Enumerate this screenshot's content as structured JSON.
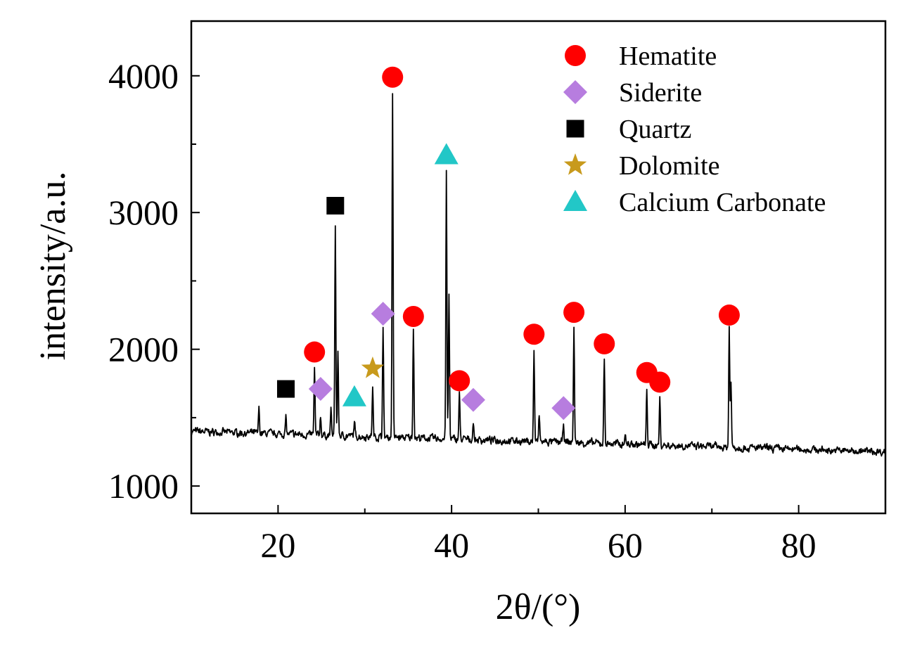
{
  "chart_data": {
    "type": "line",
    "title": "",
    "xlabel": "2θ/(°)",
    "ylabel": "intensity/a.u.",
    "xlim": [
      10,
      90
    ],
    "ylim": [
      800,
      4400
    ],
    "xticks": [
      20,
      40,
      60,
      80
    ],
    "yticks": [
      1000,
      2000,
      3000,
      4000
    ],
    "grid": false,
    "legend_position": "top-right",
    "colors": {
      "line": "#000000",
      "Hematite": "#ff0000",
      "Siderite": "#b77ddf",
      "Quartz": "#000000",
      "Dolomite": "#c89a1c",
      "Calcium Carbonate": "#22c7c7"
    },
    "baseline": {
      "x": [
        10,
        90
      ],
      "y": [
        1400,
        1250
      ]
    },
    "peaks": [
      {
        "x": 17.8,
        "y": 1570
      },
      {
        "x": 20.9,
        "y": 1500
      },
      {
        "x": 24.2,
        "y": 1860
      },
      {
        "x": 24.9,
        "y": 1520
      },
      {
        "x": 26.1,
        "y": 1560
      },
      {
        "x": 26.6,
        "y": 2920
      },
      {
        "x": 26.9,
        "y": 1980
      },
      {
        "x": 28.8,
        "y": 1470
      },
      {
        "x": 30.9,
        "y": 1720
      },
      {
        "x": 32.1,
        "y": 2160
      },
      {
        "x": 33.2,
        "y": 3870
      },
      {
        "x": 35.6,
        "y": 2150
      },
      {
        "x": 39.4,
        "y": 3290
      },
      {
        "x": 39.7,
        "y": 2390
      },
      {
        "x": 40.9,
        "y": 1680
      },
      {
        "x": 42.5,
        "y": 1470
      },
      {
        "x": 49.5,
        "y": 1990
      },
      {
        "x": 50.1,
        "y": 1520
      },
      {
        "x": 52.9,
        "y": 1460
      },
      {
        "x": 54.1,
        "y": 2170
      },
      {
        "x": 57.6,
        "y": 1930
      },
      {
        "x": 60.0,
        "y": 1390
      },
      {
        "x": 62.5,
        "y": 1710
      },
      {
        "x": 64.0,
        "y": 1640
      },
      {
        "x": 72.0,
        "y": 2160
      },
      {
        "x": 72.2,
        "y": 1760
      }
    ],
    "legend": [
      {
        "name": "Hematite",
        "marker": "circle"
      },
      {
        "name": "Siderite",
        "marker": "diamond"
      },
      {
        "name": "Quartz",
        "marker": "square"
      },
      {
        "name": "Dolomite",
        "marker": "star"
      },
      {
        "name": "Calcium Carbonate",
        "marker": "triangle"
      }
    ],
    "markers": [
      {
        "phase": "Quartz",
        "x": 20.9,
        "y": 1710
      },
      {
        "phase": "Hematite",
        "x": 24.2,
        "y": 1980
      },
      {
        "phase": "Siderite",
        "x": 24.9,
        "y": 1710
      },
      {
        "phase": "Quartz",
        "x": 26.6,
        "y": 3050
      },
      {
        "phase": "Calcium Carbonate",
        "x": 28.8,
        "y": 1650
      },
      {
        "phase": "Dolomite",
        "x": 30.9,
        "y": 1860
      },
      {
        "phase": "Siderite",
        "x": 32.1,
        "y": 2260
      },
      {
        "phase": "Hematite",
        "x": 33.2,
        "y": 3990
      },
      {
        "phase": "Hematite",
        "x": 35.6,
        "y": 2240
      },
      {
        "phase": "Calcium Carbonate",
        "x": 39.4,
        "y": 3420
      },
      {
        "phase": "Hematite",
        "x": 40.9,
        "y": 1770
      },
      {
        "phase": "Siderite",
        "x": 42.5,
        "y": 1630
      },
      {
        "phase": "Hematite",
        "x": 49.5,
        "y": 2110
      },
      {
        "phase": "Siderite",
        "x": 52.9,
        "y": 1570
      },
      {
        "phase": "Hematite",
        "x": 54.1,
        "y": 2270
      },
      {
        "phase": "Hematite",
        "x": 57.6,
        "y": 2040
      },
      {
        "phase": "Hematite",
        "x": 62.5,
        "y": 1830
      },
      {
        "phase": "Hematite",
        "x": 64.0,
        "y": 1760
      },
      {
        "phase": "Hematite",
        "x": 72.0,
        "y": 2250
      }
    ]
  }
}
